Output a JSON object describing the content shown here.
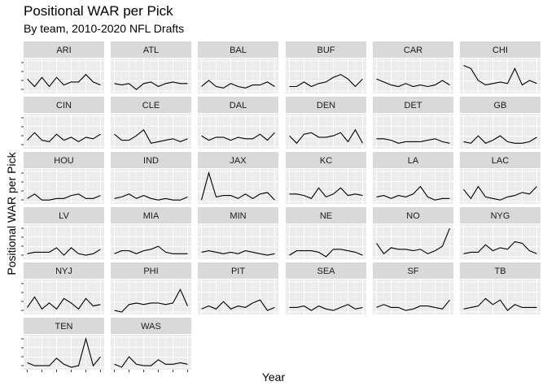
{
  "chart_data": {
    "type": "line",
    "title": "Positional WAR per Pick",
    "subtitle": "By team, 2010-2020 NFL Drafts",
    "xlabel": "Year",
    "ylabel": "Positional WAR per Pick",
    "x": [
      2010,
      2011,
      2012,
      2013,
      2014,
      2015,
      2016,
      2017,
      2018,
      2019,
      2020
    ],
    "ylim": [
      0,
      1
    ],
    "grid": true,
    "panels": [
      {
        "team": "ARI",
        "values": [
          0.4,
          0.15,
          0.45,
          0.15,
          0.45,
          0.2,
          0.3,
          0.3,
          0.55,
          0.3,
          0.2
        ]
      },
      {
        "team": "ATL",
        "values": [
          0.25,
          0.2,
          0.25,
          0.05,
          0.25,
          0.3,
          0.15,
          0.25,
          0.3,
          0.25,
          0.25
        ]
      },
      {
        "team": "BAL",
        "values": [
          0.15,
          0.35,
          0.15,
          0.1,
          0.25,
          0.15,
          0.1,
          0.2,
          0.2,
          0.3,
          0.15
        ]
      },
      {
        "team": "BUF",
        "values": [
          0.15,
          0.15,
          0.3,
          0.15,
          0.25,
          0.3,
          0.45,
          0.55,
          0.4,
          0.15,
          0.4
        ]
      },
      {
        "team": "CAR",
        "values": [
          0.4,
          0.3,
          0.2,
          0.15,
          0.25,
          0.15,
          0.2,
          0.15,
          0.2,
          0.35,
          0.2
        ]
      },
      {
        "team": "CHI",
        "values": [
          0.85,
          0.75,
          0.35,
          0.2,
          0.25,
          0.3,
          0.25,
          0.75,
          0.2,
          0.35,
          0.25
        ]
      },
      {
        "team": "CIN",
        "values": [
          0.2,
          0.45,
          0.2,
          0.15,
          0.4,
          0.2,
          0.3,
          0.15,
          0.3,
          0.25,
          0.4
        ]
      },
      {
        "team": "CLE",
        "values": [
          0.4,
          0.2,
          0.2,
          0.35,
          0.55,
          0.1,
          0.15,
          0.2,
          0.25,
          0.15,
          0.25
        ]
      },
      {
        "team": "DAL",
        "values": [
          0.35,
          0.2,
          0.3,
          0.3,
          0.2,
          0.3,
          0.25,
          0.25,
          0.4,
          0.2,
          0.45
        ]
      },
      {
        "team": "DEN",
        "values": [
          0.35,
          0.1,
          0.4,
          0.45,
          0.3,
          0.3,
          0.35,
          0.45,
          0.15,
          0.55,
          0.1
        ]
      },
      {
        "team": "DET",
        "values": [
          0.25,
          0.25,
          0.2,
          0.1,
          0.15,
          0.15,
          0.15,
          0.2,
          0.25,
          0.15,
          0.1
        ]
      },
      {
        "team": "GB",
        "values": [
          0.15,
          0.1,
          0.35,
          0.1,
          0.2,
          0.35,
          0.15,
          0.1,
          0.1,
          0.15,
          0.3
        ]
      },
      {
        "team": "HOU",
        "values": [
          0.1,
          0.25,
          0.05,
          0.05,
          0.1,
          0.1,
          0.2,
          0.25,
          0.1,
          0.1,
          0.2
        ]
      },
      {
        "team": "IND",
        "values": [
          0.1,
          0.15,
          0.25,
          0.1,
          0.2,
          0.1,
          0.05,
          0.1,
          0.05,
          0.05,
          0.15
        ]
      },
      {
        "team": "JAX",
        "values": [
          0.05,
          0.95,
          0.15,
          0.2,
          0.2,
          0.1,
          0.25,
          0.1,
          0.25,
          0.3,
          0.05
        ]
      },
      {
        "team": "KC",
        "values": [
          0.25,
          0.25,
          0.2,
          0.1,
          0.45,
          0.15,
          0.25,
          0.45,
          0.2,
          0.25,
          0.2
        ]
      },
      {
        "team": "LA",
        "values": [
          0.15,
          0.2,
          0.1,
          0.2,
          0.15,
          0.25,
          0.5,
          0.15,
          0.05,
          0.1,
          0.1
        ]
      },
      {
        "team": "LAC",
        "values": [
          0.4,
          0.1,
          0.5,
          0.15,
          0.1,
          0.05,
          0.15,
          0.2,
          0.3,
          0.25,
          0.5
        ]
      },
      {
        "team": "LV",
        "values": [
          0.1,
          0.15,
          0.15,
          0.15,
          0.3,
          0.05,
          0.3,
          0.1,
          0.05,
          0.1,
          0.25
        ]
      },
      {
        "team": "MIA",
        "values": [
          0.1,
          0.2,
          0.2,
          0.1,
          0.2,
          0.25,
          0.35,
          0.15,
          0.1,
          0.1,
          0.1
        ]
      },
      {
        "team": "MIN",
        "values": [
          0.15,
          0.2,
          0.15,
          0.1,
          0.15,
          0.1,
          0.2,
          0.15,
          0.1,
          0.05,
          0.1
        ]
      },
      {
        "team": "NE",
        "values": [
          0.05,
          0.2,
          0.2,
          0.2,
          0.15,
          0.0,
          0.25,
          0.25,
          0.2,
          0.15,
          0.05
        ]
      },
      {
        "team": "NO",
        "values": [
          0.45,
          0.1,
          0.3,
          0.25,
          0.25,
          0.2,
          0.25,
          0.1,
          0.2,
          0.35,
          0.95
        ]
      },
      {
        "team": "NYG",
        "values": [
          0.1,
          0.15,
          0.15,
          0.4,
          0.2,
          0.3,
          0.25,
          0.5,
          0.45,
          0.2,
          0.1
        ]
      },
      {
        "team": "NYJ",
        "values": [
          0.15,
          0.5,
          0.1,
          0.3,
          0.1,
          0.45,
          0.3,
          0.1,
          0.45,
          0.2,
          0.25
        ]
      },
      {
        "team": "PHI",
        "values": [
          0.05,
          0.0,
          0.25,
          0.3,
          0.25,
          0.3,
          0.3,
          0.25,
          0.3,
          0.75,
          0.2
        ]
      },
      {
        "team": "PIT",
        "values": [
          0.1,
          0.2,
          0.1,
          0.35,
          0.1,
          0.2,
          0.15,
          0.3,
          0.4,
          0.05,
          0.15
        ]
      },
      {
        "team": "SEA",
        "values": [
          0.15,
          0.15,
          0.2,
          0.05,
          0.2,
          0.1,
          0.05,
          0.15,
          0.25,
          0.1,
          0.15
        ]
      },
      {
        "team": "SF",
        "values": [
          0.15,
          0.25,
          0.15,
          0.15,
          0.05,
          0.1,
          0.2,
          0.2,
          0.15,
          0.1,
          0.4
        ]
      },
      {
        "team": "TB",
        "values": [
          0.1,
          0.15,
          0.2,
          0.45,
          0.25,
          0.4,
          0.05,
          0.25,
          0.15,
          0.15,
          0.15
        ]
      },
      {
        "team": "TEN",
        "values": [
          0.15,
          0.05,
          0.05,
          0.05,
          0.3,
          0.1,
          0.0,
          0.05,
          0.95,
          0.05,
          0.35
        ]
      },
      {
        "team": "WAS",
        "values": [
          0.1,
          0.0,
          0.35,
          0.1,
          0.05,
          0.05,
          0.25,
          0.1,
          0.1,
          0.15,
          0.1
        ]
      }
    ]
  },
  "colors": {
    "strip_bg": "#d9d9d9",
    "panel_bg": "#ebebeb",
    "grid_major": "#ffffff",
    "grid_minor": "#f5f5f5",
    "line": "#000000",
    "tick": "#333333",
    "strip_text": "#1a1a1a"
  }
}
